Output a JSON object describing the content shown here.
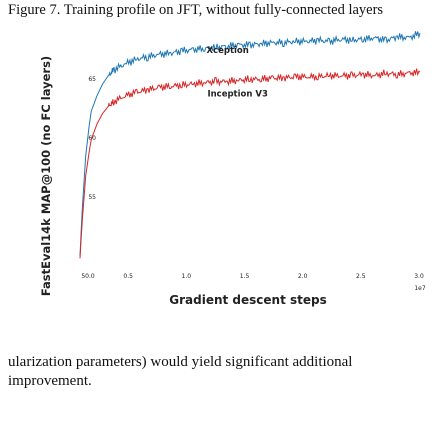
{
  "caption": "Figure 7. Training profile on JFT, without fully-connected layers",
  "body_text": {
    "line1": "ularization parameters) would yield significant additional",
    "line2": "improvement."
  },
  "chart_data": {
    "type": "line",
    "title": "",
    "xlabel": "Gradient descent steps",
    "ylabel": "FastEval14k MAP@100 (no FC layers)",
    "x_offset_label": "1e7",
    "xlim": [
      0,
      3.0
    ],
    "ylim": [
      50,
      69
    ],
    "xticks": [
      0.0,
      0.5,
      1.0,
      1.5,
      2.0,
      2.5,
      3.0
    ],
    "xtick_labels": [
      "0.0",
      "0.5",
      "1.0",
      "1.5",
      "2.0",
      "2.5",
      "3.0"
    ],
    "yticks": [
      50,
      55,
      60,
      65
    ],
    "ytick_labels": [
      "50",
      "55",
      "60",
      "65"
    ],
    "grid": false,
    "series": [
      {
        "name": "Xception",
        "color": "#1f77b4",
        "x": [
          0.0,
          0.02,
          0.05,
          0.08,
          0.1,
          0.15,
          0.2,
          0.25,
          0.3,
          0.4,
          0.5,
          0.6,
          0.7,
          0.8,
          0.9,
          1.0,
          1.1,
          1.2,
          1.3,
          1.4,
          1.5,
          1.6,
          1.7,
          1.8,
          1.9,
          2.0,
          2.1,
          2.2,
          2.3,
          2.4,
          2.5,
          2.6,
          2.7,
          2.8,
          2.9,
          3.0
        ],
        "y": [
          50.0,
          54.0,
          58.5,
          61.0,
          62.3,
          63.6,
          64.6,
          65.3,
          65.8,
          66.3,
          66.7,
          66.9,
          67.1,
          67.2,
          67.4,
          67.5,
          67.6,
          67.7,
          67.8,
          67.9,
          67.9,
          68.0,
          68.1,
          68.1,
          68.2,
          68.2,
          68.3,
          68.2,
          68.4,
          68.3,
          68.4,
          68.5,
          68.3,
          68.6,
          68.5,
          68.9
        ]
      },
      {
        "name": "Inception V3",
        "color": "#d62728",
        "x": [
          0.0,
          0.02,
          0.05,
          0.08,
          0.1,
          0.15,
          0.2,
          0.25,
          0.3,
          0.4,
          0.5,
          0.6,
          0.7,
          0.8,
          0.9,
          1.0,
          1.1,
          1.2,
          1.3,
          1.4,
          1.5,
          1.6,
          1.7,
          1.8,
          1.9,
          2.0,
          2.1,
          2.2,
          2.3,
          2.4,
          2.5,
          2.6,
          2.7,
          2.8,
          2.9,
          3.0
        ],
        "y": [
          49.8,
          53.0,
          56.8,
          58.8,
          59.9,
          61.2,
          62.1,
          62.7,
          63.1,
          63.6,
          63.9,
          64.1,
          64.3,
          64.4,
          64.5,
          64.6,
          64.7,
          64.8,
          64.8,
          64.9,
          65.0,
          65.0,
          65.1,
          65.1,
          65.2,
          65.2,
          65.2,
          65.3,
          65.3,
          65.3,
          65.4,
          65.3,
          65.5,
          65.4,
          65.5,
          65.6
        ]
      }
    ],
    "annotations": [
      {
        "text": "Xception",
        "x": 0.95,
        "y": 68.9
      },
      {
        "text": "Inception V3",
        "x": 0.95,
        "y": 64.2
      }
    ]
  }
}
